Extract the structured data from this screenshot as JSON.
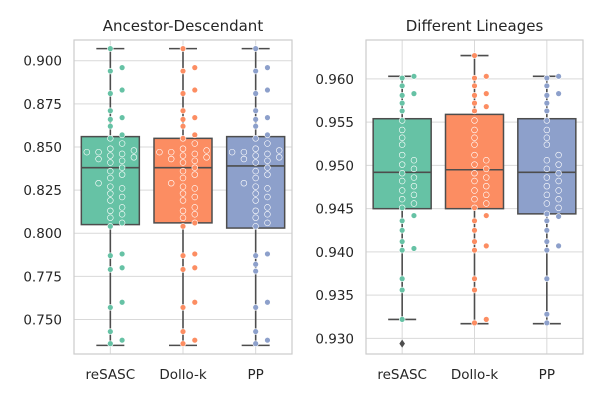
{
  "chart_data": [
    {
      "type": "box",
      "title": "Ancestor-Descendant",
      "categories": [
        "reSASC",
        "Dollo-k",
        "PP"
      ],
      "colors": [
        "#66c2a5",
        "#fc8d62",
        "#8da0cb"
      ],
      "ylim": [
        0.73,
        0.912
      ],
      "yticks": [
        0.75,
        0.775,
        0.8,
        0.825,
        0.85,
        0.875,
        0.9
      ],
      "ytick_labels": [
        "0.750",
        "0.775",
        "0.800",
        "0.825",
        "0.850",
        "0.875",
        "0.900"
      ],
      "grid": true,
      "boxes": [
        {
          "name": "reSASC",
          "whisker_low": 0.735,
          "q1": 0.805,
          "median": 0.838,
          "q3": 0.856,
          "whisker_high": 0.907,
          "points": [
            0.907,
            0.896,
            0.894,
            0.883,
            0.881,
            0.871,
            0.867,
            0.866,
            0.862,
            0.857,
            0.855,
            0.852,
            0.849,
            0.848,
            0.847,
            0.847,
            0.846,
            0.845,
            0.844,
            0.843,
            0.842,
            0.841,
            0.838,
            0.836,
            0.834,
            0.832,
            0.829,
            0.827,
            0.826,
            0.823,
            0.821,
            0.819,
            0.815,
            0.813,
            0.811,
            0.809,
            0.806,
            0.804,
            0.788,
            0.787,
            0.78,
            0.779,
            0.76,
            0.757,
            0.743,
            0.738,
            0.736
          ]
        },
        {
          "name": "Dollo-k",
          "whisker_low": 0.735,
          "q1": 0.806,
          "median": 0.838,
          "q3": 0.855,
          "whisker_high": 0.907,
          "points": [
            0.907,
            0.896,
            0.894,
            0.883,
            0.881,
            0.871,
            0.867,
            0.866,
            0.862,
            0.857,
            0.855,
            0.852,
            0.849,
            0.848,
            0.847,
            0.847,
            0.846,
            0.845,
            0.844,
            0.843,
            0.842,
            0.841,
            0.838,
            0.836,
            0.834,
            0.832,
            0.829,
            0.827,
            0.826,
            0.823,
            0.821,
            0.819,
            0.815,
            0.813,
            0.811,
            0.809,
            0.806,
            0.804,
            0.788,
            0.787,
            0.78,
            0.779,
            0.76,
            0.757,
            0.743,
            0.738,
            0.736
          ]
        },
        {
          "name": "PP",
          "whisker_low": 0.735,
          "q1": 0.803,
          "median": 0.839,
          "q3": 0.856,
          "whisker_high": 0.907,
          "points": [
            0.907,
            0.896,
            0.894,
            0.883,
            0.881,
            0.871,
            0.867,
            0.866,
            0.862,
            0.857,
            0.855,
            0.852,
            0.849,
            0.848,
            0.847,
            0.847,
            0.846,
            0.845,
            0.844,
            0.843,
            0.842,
            0.841,
            0.838,
            0.836,
            0.834,
            0.832,
            0.829,
            0.827,
            0.826,
            0.823,
            0.821,
            0.819,
            0.815,
            0.813,
            0.811,
            0.809,
            0.806,
            0.804,
            0.788,
            0.787,
            0.782,
            0.778,
            0.76,
            0.757,
            0.743,
            0.738,
            0.736
          ]
        }
      ]
    },
    {
      "type": "box",
      "title": "Different Lineages",
      "categories": [
        "reSASC",
        "Dollo-k",
        "PP"
      ],
      "colors": [
        "#66c2a5",
        "#fc8d62",
        "#8da0cb"
      ],
      "ylim": [
        0.9282,
        0.9645
      ],
      "yticks": [
        0.93,
        0.935,
        0.94,
        0.945,
        0.95,
        0.955,
        0.96
      ],
      "ytick_labels": [
        "0.930",
        "0.935",
        "0.940",
        "0.945",
        "0.950",
        "0.955",
        "0.960"
      ],
      "grid": true,
      "boxes": [
        {
          "name": "reSASC",
          "whisker_low": 0.9322,
          "q1": 0.945,
          "median": 0.9492,
          "q3": 0.9554,
          "whisker_high": 0.9603,
          "fliers": [
            0.9294
          ],
          "points": [
            0.9603,
            0.9601,
            0.9592,
            0.9583,
            0.9581,
            0.9572,
            0.9563,
            0.9552,
            0.9541,
            0.9532,
            0.9524,
            0.9512,
            0.9506,
            0.9501,
            0.9496,
            0.9491,
            0.9486,
            0.9482,
            0.9476,
            0.9471,
            0.9466,
            0.9461,
            0.9456,
            0.9451,
            0.9442,
            0.9436,
            0.9425,
            0.9412,
            0.9404,
            0.9402,
            0.9369,
            0.9356,
            0.9322
          ]
        },
        {
          "name": "Dollo-k",
          "whisker_low": 0.9317,
          "q1": 0.945,
          "median": 0.9495,
          "q3": 0.9559,
          "whisker_high": 0.9627,
          "points": [
            0.9627,
            0.9603,
            0.9601,
            0.9592,
            0.9583,
            0.9581,
            0.9572,
            0.9568,
            0.9563,
            0.9552,
            0.9541,
            0.9532,
            0.9524,
            0.9512,
            0.9506,
            0.9501,
            0.9496,
            0.9491,
            0.9486,
            0.9482,
            0.9476,
            0.9471,
            0.9466,
            0.9461,
            0.9456,
            0.9451,
            0.9442,
            0.9436,
            0.9425,
            0.9412,
            0.9407,
            0.9402,
            0.9369,
            0.9356,
            0.9322,
            0.9318
          ]
        },
        {
          "name": "PP",
          "whisker_low": 0.9317,
          "q1": 0.9444,
          "median": 0.9492,
          "q3": 0.9554,
          "whisker_high": 0.9603,
          "points": [
            0.9603,
            0.9601,
            0.9592,
            0.9583,
            0.9581,
            0.9572,
            0.9563,
            0.9552,
            0.9541,
            0.9532,
            0.9524,
            0.9512,
            0.9506,
            0.9501,
            0.9496,
            0.9491,
            0.9486,
            0.9482,
            0.9476,
            0.9471,
            0.9466,
            0.9461,
            0.9456,
            0.9451,
            0.9444,
            0.9441,
            0.9436,
            0.9425,
            0.9412,
            0.9407,
            0.9402,
            0.9369,
            0.9328,
            0.9318
          ]
        }
      ]
    }
  ]
}
